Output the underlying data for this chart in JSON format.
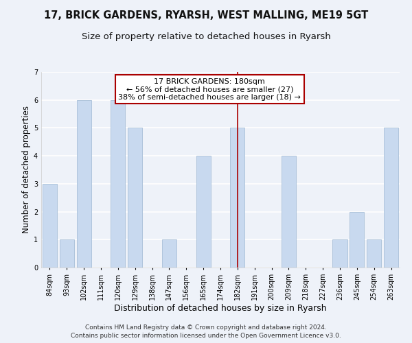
{
  "title": "17, BRICK GARDENS, RYARSH, WEST MALLING, ME19 5GT",
  "subtitle": "Size of property relative to detached houses in Ryarsh",
  "xlabel": "Distribution of detached houses by size in Ryarsh",
  "ylabel": "Number of detached properties",
  "categories": [
    "84sqm",
    "93sqm",
    "102sqm",
    "111sqm",
    "120sqm",
    "129sqm",
    "138sqm",
    "147sqm",
    "156sqm",
    "165sqm",
    "174sqm",
    "182sqm",
    "191sqm",
    "200sqm",
    "209sqm",
    "218sqm",
    "227sqm",
    "236sqm",
    "245sqm",
    "254sqm",
    "263sqm"
  ],
  "values": [
    3,
    1,
    6,
    0,
    6,
    5,
    0,
    1,
    0,
    4,
    0,
    5,
    0,
    0,
    4,
    0,
    0,
    1,
    2,
    1,
    5
  ],
  "bar_color": "#c8d9ef",
  "bar_edge_color": "#a8bfd8",
  "vline_x_index": 11,
  "vline_color": "#aa0000",
  "ylim": [
    0,
    7
  ],
  "yticks": [
    0,
    1,
    2,
    3,
    4,
    5,
    6,
    7
  ],
  "annotation_title": "17 BRICK GARDENS: 180sqm",
  "annotation_line1": "← 56% of detached houses are smaller (27)",
  "annotation_line2": "38% of semi-detached houses are larger (18) →",
  "annotation_box_color": "#ffffff",
  "annotation_box_edge_color": "#aa0000",
  "footer1": "Contains HM Land Registry data © Crown copyright and database right 2024.",
  "footer2": "Contains public sector information licensed under the Open Government Licence v3.0.",
  "background_color": "#eef2f9",
  "grid_color": "#ffffff",
  "title_fontsize": 10.5,
  "subtitle_fontsize": 9.5,
  "xlabel_fontsize": 9,
  "ylabel_fontsize": 8.5,
  "tick_fontsize": 7,
  "annotation_fontsize": 8,
  "footer_fontsize": 6.5
}
